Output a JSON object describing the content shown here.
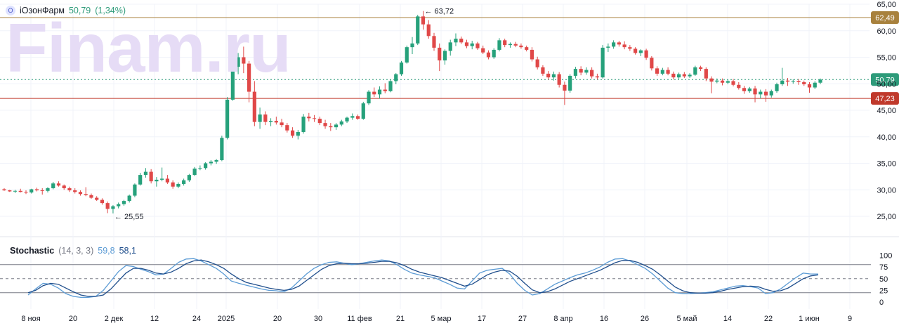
{
  "watermark": "Finam.ru",
  "header": {
    "badge": "О",
    "name": "iОзонФарм",
    "price": "50,79",
    "change": "(1,34%)"
  },
  "stochastic": {
    "title": "Stochastic",
    "params": "(14, 3, 3)",
    "k_value": "59,8",
    "d_value": "58,1"
  },
  "colors": {
    "up": "#26a17b",
    "down": "#e04848",
    "resistance": "#a8813d",
    "support": "#c0392b",
    "last": "#2e9b7a",
    "k": "#5b9bd5",
    "d": "#1f4e8c"
  },
  "chart_data": [
    {
      "type": "candlestick",
      "title": "iОзонФарм",
      "y_ticks": [
        "25,00",
        "30,00",
        "35,00",
        "40,00",
        "45,00",
        "50,00",
        "55,00",
        "60,00",
        "65,00"
      ],
      "ylim": [
        22.5,
        65
      ],
      "x_ticks": [
        "8 ноя",
        "20",
        "2 дек",
        "12",
        "24",
        "2025",
        "20",
        "30",
        "11 фев",
        "21",
        "5 мар",
        "17",
        "27",
        "8 апр",
        "16",
        "26",
        "5 май",
        "14",
        "22",
        "1 июн",
        "9"
      ],
      "horizontal_lines": [
        {
          "label": "62,49",
          "value": 62.49,
          "color": "#a8813d"
        },
        {
          "label": "47,23",
          "value": 47.23,
          "color": "#c0392b"
        },
        {
          "label": "50,79",
          "value": 50.79,
          "color": "#2e9b7a",
          "style": "dotted"
        }
      ],
      "annotations": [
        {
          "text": "63,72",
          "value": 63.72
        },
        {
          "text": "25,55",
          "value": 25.55
        }
      ],
      "candles": [
        [
          30.1,
          30.3,
          29.8,
          29.9
        ],
        [
          29.9,
          30.0,
          29.6,
          29.7
        ],
        [
          29.7,
          30.0,
          29.4,
          29.8
        ],
        [
          29.8,
          30.2,
          29.5,
          29.6
        ],
        [
          29.6,
          29.9,
          29.2,
          29.5
        ],
        [
          29.5,
          30.2,
          29.3,
          30.1
        ],
        [
          30.1,
          30.4,
          29.7,
          29.9
        ],
        [
          29.9,
          30.3,
          29.1,
          29.8
        ],
        [
          29.8,
          30.5,
          29.5,
          30.3
        ],
        [
          30.3,
          31.5,
          30.1,
          31.2
        ],
        [
          31.2,
          31.6,
          30.6,
          30.8
        ],
        [
          30.8,
          31.0,
          30.0,
          30.3
        ],
        [
          30.3,
          30.6,
          29.6,
          29.9
        ],
        [
          29.9,
          30.3,
          29.3,
          29.6
        ],
        [
          29.6,
          29.9,
          28.9,
          29.2
        ],
        [
          29.2,
          30.5,
          28.8,
          29.0
        ],
        [
          29.0,
          29.3,
          28.3,
          28.5
        ],
        [
          28.5,
          28.8,
          27.9,
          28.1
        ],
        [
          28.1,
          28.4,
          27.2,
          27.5
        ],
        [
          27.5,
          27.8,
          25.6,
          26.4
        ],
        [
          26.4,
          27.1,
          25.55,
          26.9
        ],
        [
          26.9,
          27.6,
          26.5,
          27.3
        ],
        [
          27.3,
          28.1,
          27.0,
          27.9
        ],
        [
          27.9,
          29.1,
          27.6,
          28.9
        ],
        [
          28.9,
          31.2,
          28.6,
          31.0
        ],
        [
          31.0,
          33.2,
          30.8,
          32.8
        ],
        [
          32.8,
          34.1,
          32.3,
          33.4
        ],
        [
          33.4,
          33.9,
          31.2,
          31.6
        ],
        [
          31.6,
          32.4,
          30.6,
          31.9
        ],
        [
          31.9,
          34.2,
          31.6,
          32.1
        ],
        [
          32.1,
          32.8,
          31.1,
          31.4
        ],
        [
          31.4,
          31.8,
          30.2,
          30.6
        ],
        [
          30.6,
          31.4,
          30.3,
          31.1
        ],
        [
          31.1,
          32.1,
          30.8,
          31.8
        ],
        [
          31.8,
          33.0,
          31.5,
          32.8
        ],
        [
          32.8,
          34.3,
          32.6,
          34.0
        ],
        [
          34.0,
          34.6,
          33.7,
          34.1
        ],
        [
          34.1,
          35.2,
          33.8,
          35.0
        ],
        [
          35.0,
          35.6,
          34.6,
          35.3
        ],
        [
          35.3,
          35.8,
          34.9,
          35.6
        ],
        [
          35.6,
          40.2,
          35.4,
          39.8
        ],
        [
          39.8,
          47.5,
          39.5,
          47.0
        ],
        [
          47.0,
          56.2,
          46.8,
          53.2
        ],
        [
          53.2,
          55.8,
          51.8,
          55.0
        ],
        [
          55.0,
          57.0,
          52.0,
          53.8
        ],
        [
          53.8,
          54.3,
          46.5,
          48.5
        ],
        [
          48.5,
          50.5,
          42.0,
          42.8
        ],
        [
          42.8,
          45.5,
          41.5,
          44.2
        ],
        [
          44.2,
          44.8,
          42.2,
          42.8
        ],
        [
          42.8,
          43.5,
          42.0,
          43.0
        ],
        [
          43.0,
          43.8,
          42.3,
          42.7
        ],
        [
          42.7,
          43.4,
          41.8,
          42.2
        ],
        [
          42.2,
          42.6,
          40.8,
          41.2
        ],
        [
          41.2,
          41.8,
          39.8,
          40.2
        ],
        [
          40.2,
          41.3,
          39.5,
          40.9
        ],
        [
          40.9,
          44.3,
          40.6,
          43.8
        ],
        [
          43.8,
          44.5,
          42.9,
          43.5
        ],
        [
          43.5,
          44.1,
          42.8,
          43.4
        ],
        [
          43.4,
          43.8,
          42.2,
          42.6
        ],
        [
          42.6,
          43.2,
          41.5,
          42.0
        ],
        [
          42.0,
          42.6,
          41.1,
          41.8
        ],
        [
          41.8,
          42.6,
          41.3,
          42.3
        ],
        [
          42.3,
          43.2,
          42.0,
          42.9
        ],
        [
          42.9,
          43.8,
          42.6,
          43.6
        ],
        [
          43.6,
          44.4,
          43.2,
          43.9
        ],
        [
          43.9,
          44.2,
          43.2,
          43.4
        ],
        [
          43.4,
          46.6,
          43.2,
          46.3
        ],
        [
          46.3,
          48.8,
          46.0,
          48.5
        ],
        [
          48.5,
          49.3,
          47.5,
          48.0
        ],
        [
          48.0,
          49.5,
          47.2,
          48.9
        ],
        [
          48.9,
          50.1,
          48.2,
          48.6
        ],
        [
          48.6,
          50.8,
          48.4,
          50.5
        ],
        [
          50.5,
          52.0,
          49.9,
          51.8
        ],
        [
          51.8,
          54.3,
          51.5,
          54.0
        ],
        [
          54.0,
          57.2,
          53.8,
          56.9
        ],
        [
          56.9,
          58.8,
          55.6,
          57.6
        ],
        [
          57.6,
          63.0,
          57.3,
          62.7
        ],
        [
          62.7,
          63.72,
          60.2,
          61.2
        ],
        [
          61.2,
          62.0,
          58.5,
          59.0
        ],
        [
          59.0,
          59.6,
          56.2,
          56.8
        ],
        [
          56.8,
          57.6,
          52.4,
          54.4
        ],
        [
          54.4,
          56.5,
          53.6,
          56.2
        ],
        [
          56.2,
          58.3,
          55.3,
          57.8
        ],
        [
          57.8,
          59.5,
          57.1,
          58.5
        ],
        [
          58.5,
          58.9,
          57.5,
          57.8
        ],
        [
          57.8,
          58.3,
          56.7,
          57.1
        ],
        [
          57.1,
          58.1,
          56.5,
          57.6
        ],
        [
          57.6,
          57.9,
          56.4,
          56.7
        ],
        [
          56.7,
          57.2,
          55.6,
          55.9
        ],
        [
          55.9,
          56.3,
          54.6,
          55.0
        ],
        [
          55.0,
          56.7,
          54.7,
          56.4
        ],
        [
          56.4,
          58.6,
          56.1,
          58.2
        ],
        [
          58.2,
          58.5,
          56.9,
          57.3
        ],
        [
          57.3,
          57.8,
          56.8,
          57.5
        ],
        [
          57.5,
          57.9,
          56.9,
          57.2
        ],
        [
          57.2,
          57.6,
          56.6,
          56.9
        ],
        [
          56.9,
          57.2,
          56.1,
          56.4
        ],
        [
          56.4,
          56.9,
          54.2,
          54.6
        ],
        [
          54.6,
          55.1,
          52.7,
          53.1
        ],
        [
          53.1,
          53.5,
          51.5,
          51.9
        ],
        [
          51.9,
          52.4,
          50.8,
          51.2
        ],
        [
          51.2,
          52.3,
          50.6,
          51.8
        ],
        [
          51.8,
          52.2,
          49.3,
          49.8
        ],
        [
          49.8,
          50.4,
          46.0,
          48.7
        ],
        [
          48.7,
          51.8,
          48.3,
          51.5
        ],
        [
          51.5,
          53.2,
          51.0,
          52.8
        ],
        [
          52.8,
          53.3,
          51.6,
          52.1
        ],
        [
          52.1,
          53.1,
          51.7,
          52.6
        ],
        [
          52.6,
          53.1,
          51.0,
          51.4
        ],
        [
          51.4,
          51.9,
          50.8,
          51.2
        ],
        [
          51.2,
          57.3,
          51.0,
          56.8
        ],
        [
          56.8,
          57.6,
          56.0,
          57.0
        ],
        [
          57.0,
          58.2,
          56.6,
          57.8
        ],
        [
          57.8,
          58.1,
          57.0,
          57.4
        ],
        [
          57.4,
          58.0,
          56.5,
          56.9
        ],
        [
          56.9,
          57.3,
          56.2,
          56.6
        ],
        [
          56.6,
          56.9,
          55.5,
          55.8
        ],
        [
          55.8,
          56.5,
          55.2,
          56.3
        ],
        [
          56.3,
          56.6,
          54.5,
          54.9
        ],
        [
          54.9,
          55.2,
          52.5,
          52.9
        ],
        [
          52.9,
          53.3,
          51.5,
          51.9
        ],
        [
          51.9,
          53.0,
          51.6,
          52.6
        ],
        [
          52.6,
          53.1,
          51.6,
          51.9
        ],
        [
          51.9,
          52.3,
          50.8,
          51.2
        ],
        [
          51.2,
          52.1,
          50.9,
          51.8
        ],
        [
          51.8,
          52.2,
          51.1,
          51.4
        ],
        [
          51.4,
          52.0,
          51.1,
          51.7
        ],
        [
          51.7,
          53.4,
          51.5,
          53.1
        ],
        [
          53.1,
          53.4,
          52.4,
          52.8
        ],
        [
          52.8,
          53.1,
          50.5,
          51.0
        ],
        [
          51.0,
          51.4,
          48.2,
          50.4
        ],
        [
          50.4,
          51.0,
          50.1,
          50.6
        ],
        [
          50.6,
          51.0,
          49.7,
          50.2
        ],
        [
          50.2,
          50.8,
          49.9,
          50.5
        ],
        [
          50.5,
          50.9,
          49.5,
          49.8
        ],
        [
          49.8,
          50.3,
          48.9,
          49.2
        ],
        [
          49.2,
          49.6,
          48.1,
          48.6
        ],
        [
          48.6,
          49.4,
          48.3,
          49.1
        ],
        [
          49.1,
          49.6,
          46.5,
          48.0
        ],
        [
          48.0,
          48.9,
          47.2,
          48.5
        ],
        [
          48.5,
          49.0,
          46.6,
          47.8
        ],
        [
          47.8,
          48.9,
          47.4,
          48.6
        ],
        [
          48.6,
          50.2,
          48.3,
          49.9
        ],
        [
          49.9,
          53.0,
          49.6,
          50.6
        ],
        [
          50.6,
          51.1,
          49.6,
          50.4
        ],
        [
          50.4,
          50.8,
          50.0,
          50.5
        ],
        [
          50.5,
          50.9,
          49.8,
          50.3
        ],
        [
          50.3,
          50.6,
          49.6,
          49.9
        ],
        [
          49.9,
          50.3,
          48.3,
          49.3
        ],
        [
          49.3,
          50.5,
          49.0,
          50.2
        ],
        [
          50.2,
          51.0,
          49.9,
          50.79
        ]
      ]
    },
    {
      "type": "line",
      "title": "Stochastic",
      "y_ticks": [
        "0",
        "25",
        "50",
        "75",
        "100"
      ],
      "ylim": [
        0,
        100
      ],
      "levels": [
        80,
        50,
        20
      ],
      "series": [
        {
          "name": "%K",
          "values": [
            15,
            28,
            40,
            38,
            30,
            18,
            12,
            10,
            10,
            12,
            25,
            45,
            65,
            78,
            76,
            70,
            65,
            58,
            60,
            72,
            85,
            92,
            93,
            88,
            80,
            72,
            60,
            45,
            40,
            36,
            32,
            28,
            25,
            24,
            22,
            30,
            45,
            60,
            72,
            80,
            85,
            86,
            83,
            80,
            82,
            85,
            88,
            90,
            88,
            80,
            70,
            62,
            58,
            55,
            52,
            45,
            38,
            30,
            28,
            45,
            62,
            68,
            70,
            72,
            60,
            40,
            25,
            15,
            18,
            28,
            38,
            45,
            52,
            58,
            62,
            68,
            75,
            85,
            92,
            93,
            88,
            80,
            72,
            60,
            45,
            30,
            20,
            18,
            18,
            19,
            20,
            22,
            26,
            30,
            34,
            35,
            33,
            30,
            18,
            20,
            28,
            40,
            52,
            62,
            60,
            59.8
          ]
        },
        {
          "name": "%D",
          "values": [
            20,
            25,
            35,
            40,
            38,
            30,
            22,
            15,
            12,
            12,
            15,
            28,
            45,
            62,
            72,
            72,
            68,
            62,
            60,
            64,
            72,
            82,
            88,
            90,
            86,
            80,
            72,
            60,
            50,
            42,
            38,
            34,
            30,
            27,
            25,
            27,
            34,
            46,
            58,
            70,
            78,
            82,
            83,
            82,
            82,
            83,
            85,
            87,
            87,
            84,
            78,
            70,
            64,
            60,
            56,
            52,
            46,
            40,
            34,
            38,
            48,
            58,
            64,
            68,
            66,
            55,
            40,
            26,
            20,
            22,
            28,
            36,
            44,
            50,
            56,
            62,
            68,
            76,
            84,
            89,
            89,
            85,
            78,
            70,
            58,
            45,
            32,
            24,
            20,
            19,
            19,
            20,
            23,
            27,
            30,
            33,
            34,
            33,
            27,
            23,
            24,
            30,
            40,
            50,
            56,
            58.1
          ]
        }
      ]
    }
  ]
}
